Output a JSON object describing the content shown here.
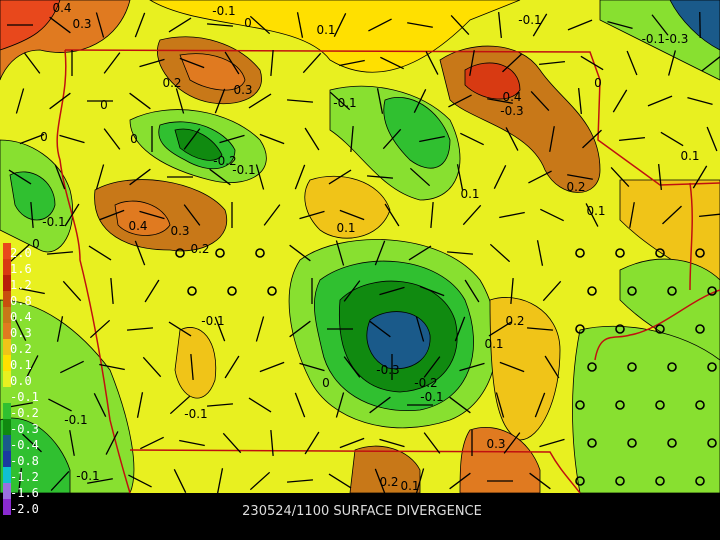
{
  "caption": "230524/1100 SURFACE DIVERGENCE",
  "legend": [
    {
      "label": "2.0",
      "color": "#e8481c"
    },
    {
      "label": "1.6",
      "color": "#d83a12"
    },
    {
      "label": "1.2",
      "color": "#b81e0a"
    },
    {
      "label": "0.8",
      "color": "#c8500e"
    },
    {
      "label": "0.4",
      "color": "#c87818"
    },
    {
      "label": "0.3",
      "color": "#e07a20"
    },
    {
      "label": "0.2",
      "color": "#f0c418"
    },
    {
      "label": "0.1",
      "color": "#ffe000"
    },
    {
      "label": "0.0",
      "color": "#e8f020"
    },
    {
      "label": "-0.1",
      "color": "#88e030"
    },
    {
      "label": "-0.2",
      "color": "#30c030"
    },
    {
      "label": "-0.3",
      "color": "#108a10"
    },
    {
      "label": "-0.4",
      "color": "#1a5a8a"
    },
    {
      "label": "-0.8",
      "color": "#1a3aa0"
    },
    {
      "label": "-1.2",
      "color": "#10c0d0"
    },
    {
      "label": "-1.6",
      "color": "#9a70e0"
    },
    {
      "label": "-2.0",
      "color": "#8a2ad0"
    }
  ],
  "contour_labels": [
    "0.3",
    "0.4",
    "-0.1",
    "0",
    "0.1",
    "-0.1",
    "-0.1-0.3",
    "0.2",
    "0.3",
    "0",
    "-0.1",
    "0.4",
    "-0.3",
    "0",
    "0",
    "0",
    "-0.2",
    "-0.1",
    "0.1",
    "0.2",
    "0.1",
    "0.1",
    "-0.1",
    "0.4",
    "0.3",
    "0.2",
    "0",
    "0.1",
    "-0.1",
    "0.2",
    "0.1",
    "-0.3",
    "0",
    "-0.2",
    "-0.1",
    "-0.1",
    "-0.1",
    "0.3",
    "-0.1",
    "0.2",
    "0.1"
  ]
}
